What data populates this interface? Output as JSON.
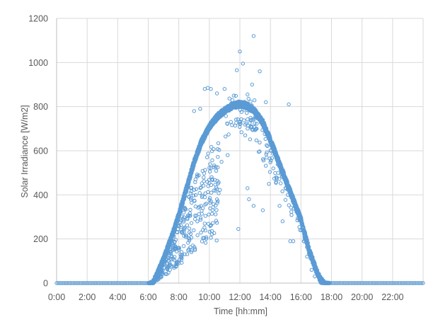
{
  "chart_data": {
    "type": "scatter",
    "xlabel": "Time [hh:mm]",
    "ylabel": "Solar Irradiance [W/m2]",
    "x_unit": "hours",
    "xlim": [
      0,
      24
    ],
    "ylim": [
      0,
      1200
    ],
    "x_tick_values": [
      0,
      2,
      4,
      6,
      8,
      10,
      12,
      14,
      16,
      18,
      20,
      22
    ],
    "x_tick_labels": [
      "0:00",
      "2:00",
      "4:00",
      "6:00",
      "8:00",
      "10:00",
      "12:00",
      "14:00",
      "16:00",
      "18:00",
      "20:00",
      "22:00"
    ],
    "y_ticks": [
      0,
      200,
      400,
      600,
      800,
      1000,
      1200
    ],
    "y_tick_labels": [
      "0",
      "200",
      "400",
      "600",
      "800",
      "1000",
      "1200"
    ],
    "grid": true,
    "legend": "none",
    "marker_color": "#5b9bd5",
    "series": [
      {
        "envelope_x": [
          0,
          6.0,
          6.3,
          6.5,
          7.0,
          7.5,
          8.0,
          8.5,
          9.0,
          9.5,
          10.0,
          10.5,
          11.0,
          11.5,
          12.0,
          12.5,
          13.0,
          13.5,
          14.0,
          14.5,
          15.0,
          15.5,
          16.0,
          16.5,
          17.0,
          17.3,
          17.6,
          18.0,
          24
        ],
        "envelope_y": [
          0,
          0,
          10,
          40,
          120,
          215,
          320,
          440,
          560,
          655,
          720,
          765,
          795,
          815,
          825,
          815,
          790,
          740,
          660,
          570,
          480,
          390,
          300,
          170,
          70,
          25,
          5,
          0,
          0
        ],
        "scatter_outliers": [
          [
            9.7,
            880
          ],
          [
            9.9,
            885
          ],
          [
            10.1,
            880
          ],
          [
            10.5,
            860
          ],
          [
            11.0,
            880
          ],
          [
            11.6,
            850
          ],
          [
            11.8,
            965
          ],
          [
            12.0,
            1050
          ],
          [
            12.2,
            995
          ],
          [
            12.5,
            855
          ],
          [
            12.8,
            900
          ],
          [
            12.9,
            1120
          ],
          [
            13.3,
            960
          ],
          [
            15.2,
            810
          ],
          [
            13.7,
            820
          ],
          [
            11.9,
            245
          ],
          [
            12.5,
            430
          ],
          [
            12.6,
            380
          ],
          [
            12.9,
            350
          ],
          [
            13.5,
            330
          ],
          [
            13.1,
            700
          ],
          [
            10.3,
            420
          ],
          [
            10.5,
            380
          ],
          [
            9.8,
            360
          ],
          [
            10.8,
            550
          ],
          [
            11.2,
            580
          ],
          [
            14.5,
            500
          ],
          [
            14.8,
            280
          ],
          [
            15.3,
            190
          ],
          [
            15.5,
            190
          ],
          [
            9.0,
            780
          ],
          [
            9.4,
            790
          ],
          [
            14.0,
            600
          ],
          [
            13.9,
            450
          ],
          [
            14.6,
            350
          ],
          [
            16.4,
            120
          ],
          [
            16.7,
            60
          ],
          [
            16.9,
            30
          ]
        ]
      }
    ]
  }
}
